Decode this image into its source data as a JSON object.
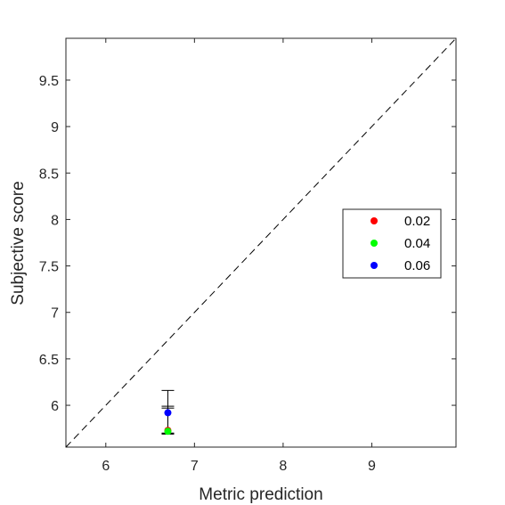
{
  "chart_data": {
    "type": "scatter",
    "xlabel": "Metric prediction",
    "ylabel": "Subjective score",
    "xlim": [
      5.55,
      9.95
    ],
    "ylim": [
      5.55,
      9.95
    ],
    "xticks": [
      "6",
      "7",
      "8",
      "9"
    ],
    "yticks": [
      "6",
      "6.5",
      "7",
      "7.5",
      "8",
      "8.5",
      "9",
      "9.5"
    ],
    "grid": false,
    "legend_position": "right",
    "reference_line": "identity (dashed)",
    "series": [
      {
        "name": "0.02",
        "color": "#ff0000",
        "points": [
          {
            "x": 6.7,
            "y": 5.73,
            "err_lo": 5.7,
            "err_hi": 5.97
          }
        ]
      },
      {
        "name": "0.04",
        "color": "#00ff00",
        "points": [
          {
            "x": 6.7,
            "y": 5.72,
            "err_lo": 5.69,
            "err_hi": 5.99
          }
        ]
      },
      {
        "name": "0.06",
        "color": "#0000ff",
        "points": [
          {
            "x": 6.7,
            "y": 5.92,
            "err_lo": 5.7,
            "err_hi": 6.16
          }
        ]
      }
    ]
  }
}
